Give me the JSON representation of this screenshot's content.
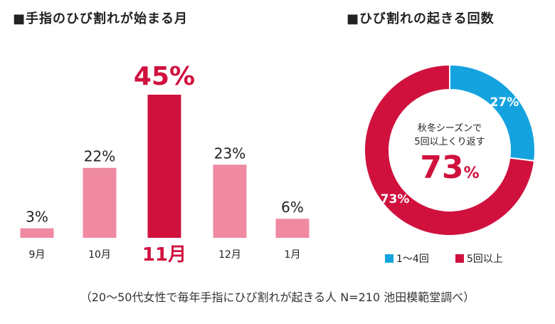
{
  "titles": {
    "bar": "■手指のひび割れが始まる月",
    "donut": "■ひび割れの起きる回数"
  },
  "colors": {
    "bar_normal": "#ef8aa2",
    "bar_highlight": "#d0113e",
    "donut_blue": "#15a3e0",
    "donut_red": "#d0113e",
    "text_dark": "#222222"
  },
  "chart_data": [
    {
      "type": "bar",
      "categories": [
        "9月",
        "10月",
        "11月",
        "12月",
        "1月"
      ],
      "values": [
        3,
        22,
        45,
        23,
        6
      ],
      "value_labels": [
        "3%",
        "22%",
        "45%",
        "23%",
        "6%"
      ],
      "highlight_index": 2,
      "ylim": [
        0,
        45
      ],
      "grid": false
    },
    {
      "type": "pie",
      "donut": true,
      "slices": [
        {
          "label": "1～4回",
          "value": 27,
          "value_label": "27%",
          "color": "#15a3e0"
        },
        {
          "label": "5回以上",
          "value": 73,
          "value_label": "73%",
          "color": "#d0113e"
        }
      ],
      "center_text": [
        "秋冬シーズンで",
        "5回以上くり返す"
      ],
      "center_value": "73",
      "center_unit": "%",
      "legend_position": "bottom"
    }
  ],
  "footnote": "（20～50代女性で毎年手指にひび割れが起きる人 N=210 池田模範堂調べ）"
}
